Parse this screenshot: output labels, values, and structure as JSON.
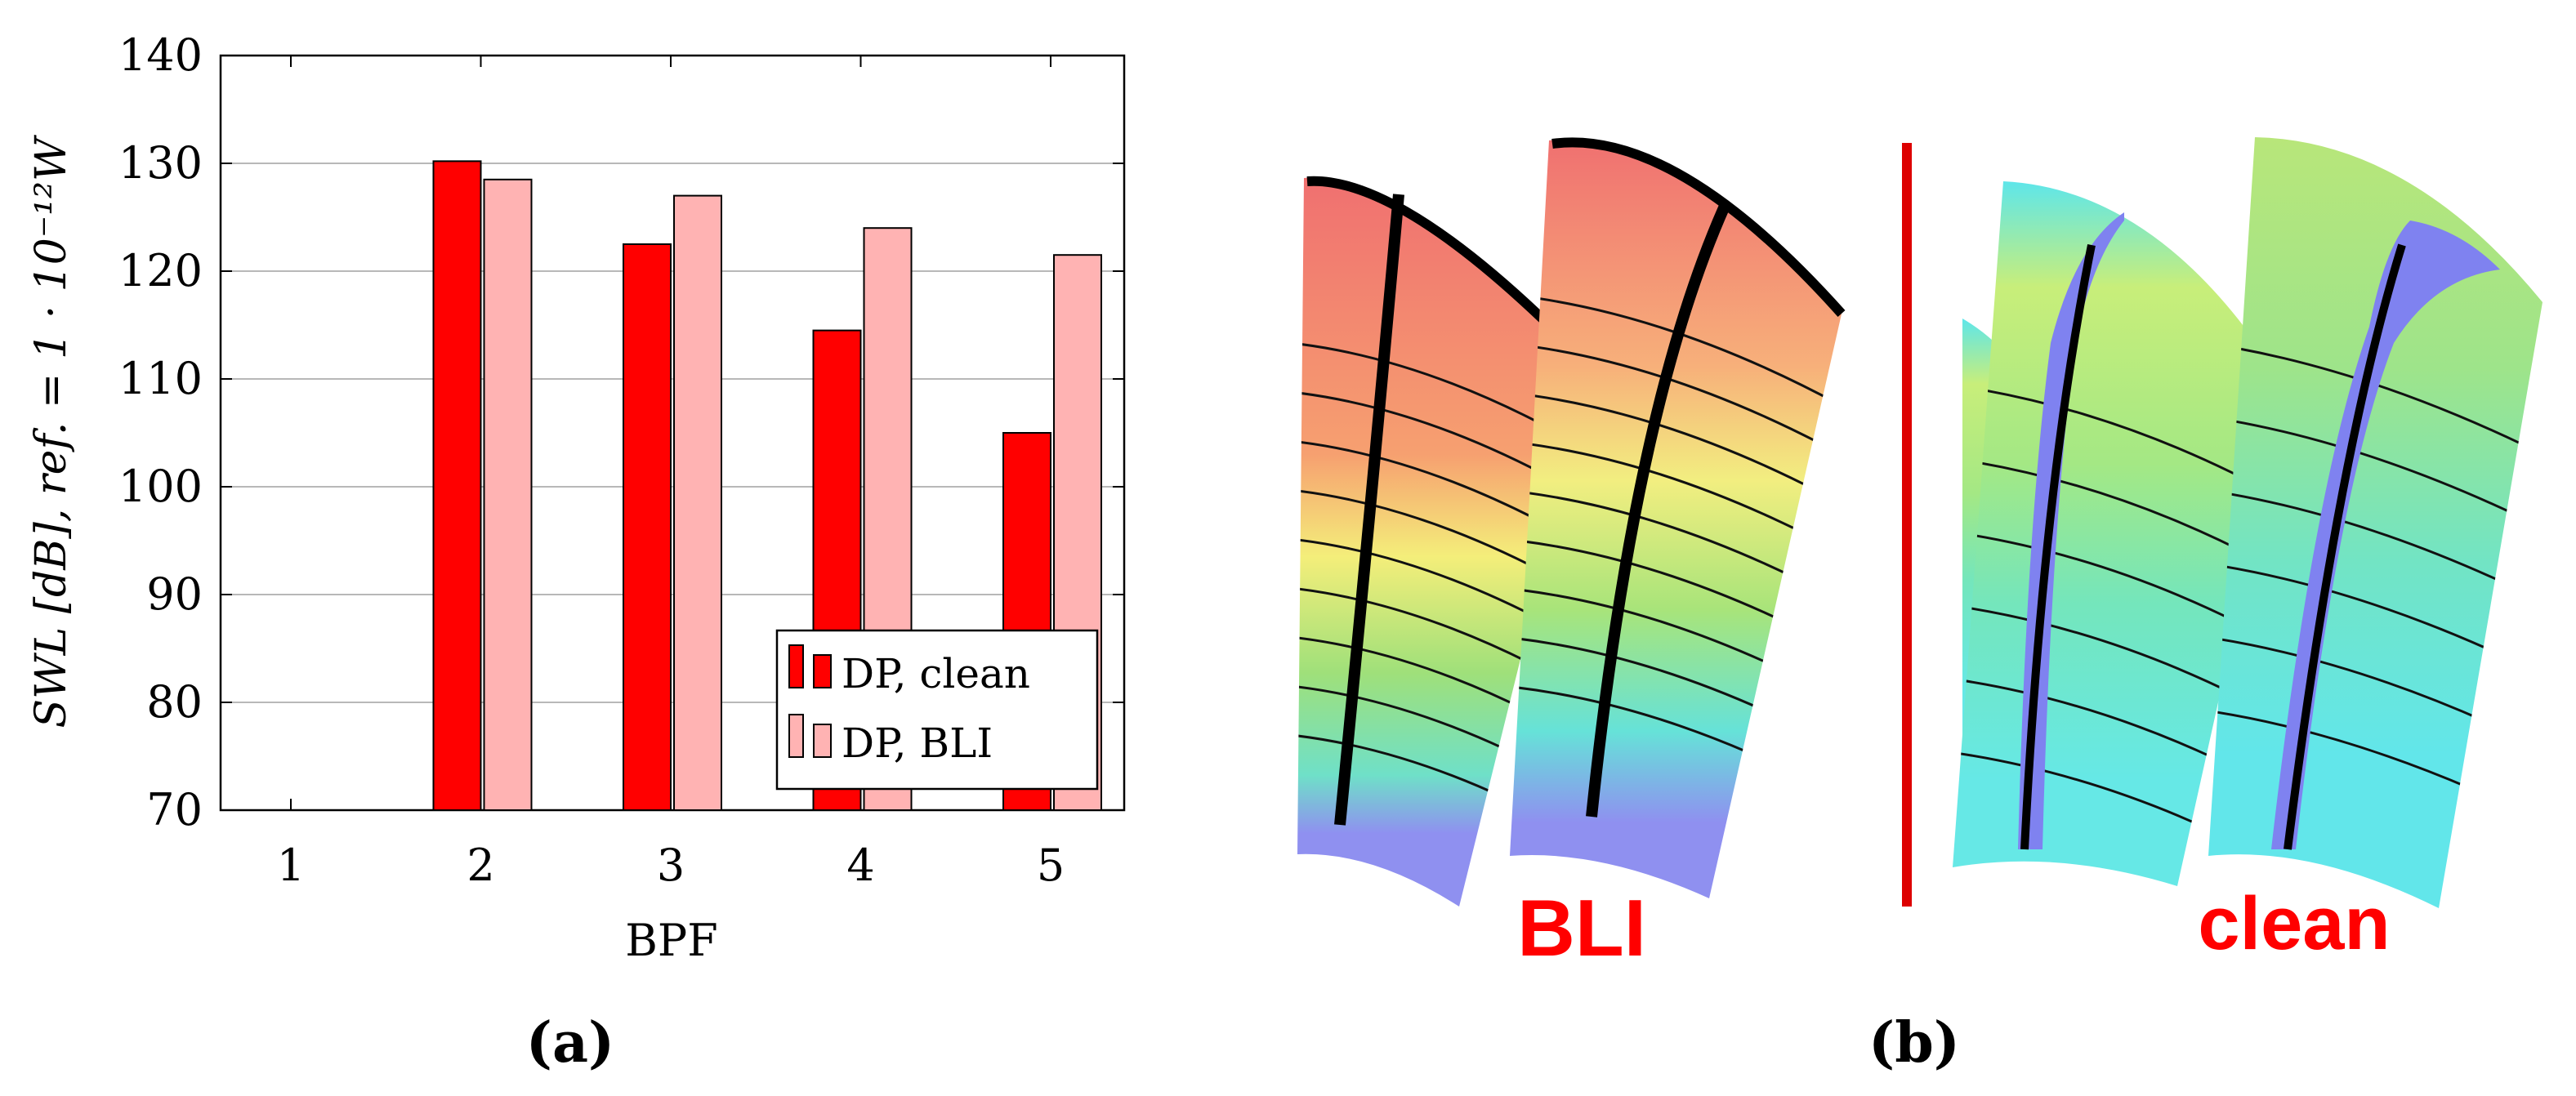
{
  "chart_data": {
    "type": "bar",
    "categories": [
      "1",
      "2",
      "3",
      "4",
      "5"
    ],
    "series": [
      {
        "name": "DP, clean",
        "values": [
          null,
          130.2,
          122.5,
          114.5,
          105.0
        ]
      },
      {
        "name": "DP, BLI",
        "values": [
          null,
          128.5,
          127.0,
          124.0,
          121.5
        ]
      }
    ],
    "xlabel": "BPF",
    "ylabel": "SWL [dB], ref. = 1 · 10⁻¹²W",
    "ylim": [
      70,
      140
    ],
    "yticks": [
      "70",
      "80",
      "90",
      "100",
      "110",
      "120",
      "130",
      "140"
    ],
    "grid": "horizontal",
    "legend": "bottom-right",
    "colors": {
      "clean": "#ff0000",
      "bli": "#ffb3b3"
    }
  },
  "panel_b": {
    "label_left": "BLI",
    "label_right": "clean",
    "label_color": "#ff0000",
    "divider_color": "#dd0000"
  },
  "captions": {
    "a": "(a)",
    "b": "(b)"
  }
}
